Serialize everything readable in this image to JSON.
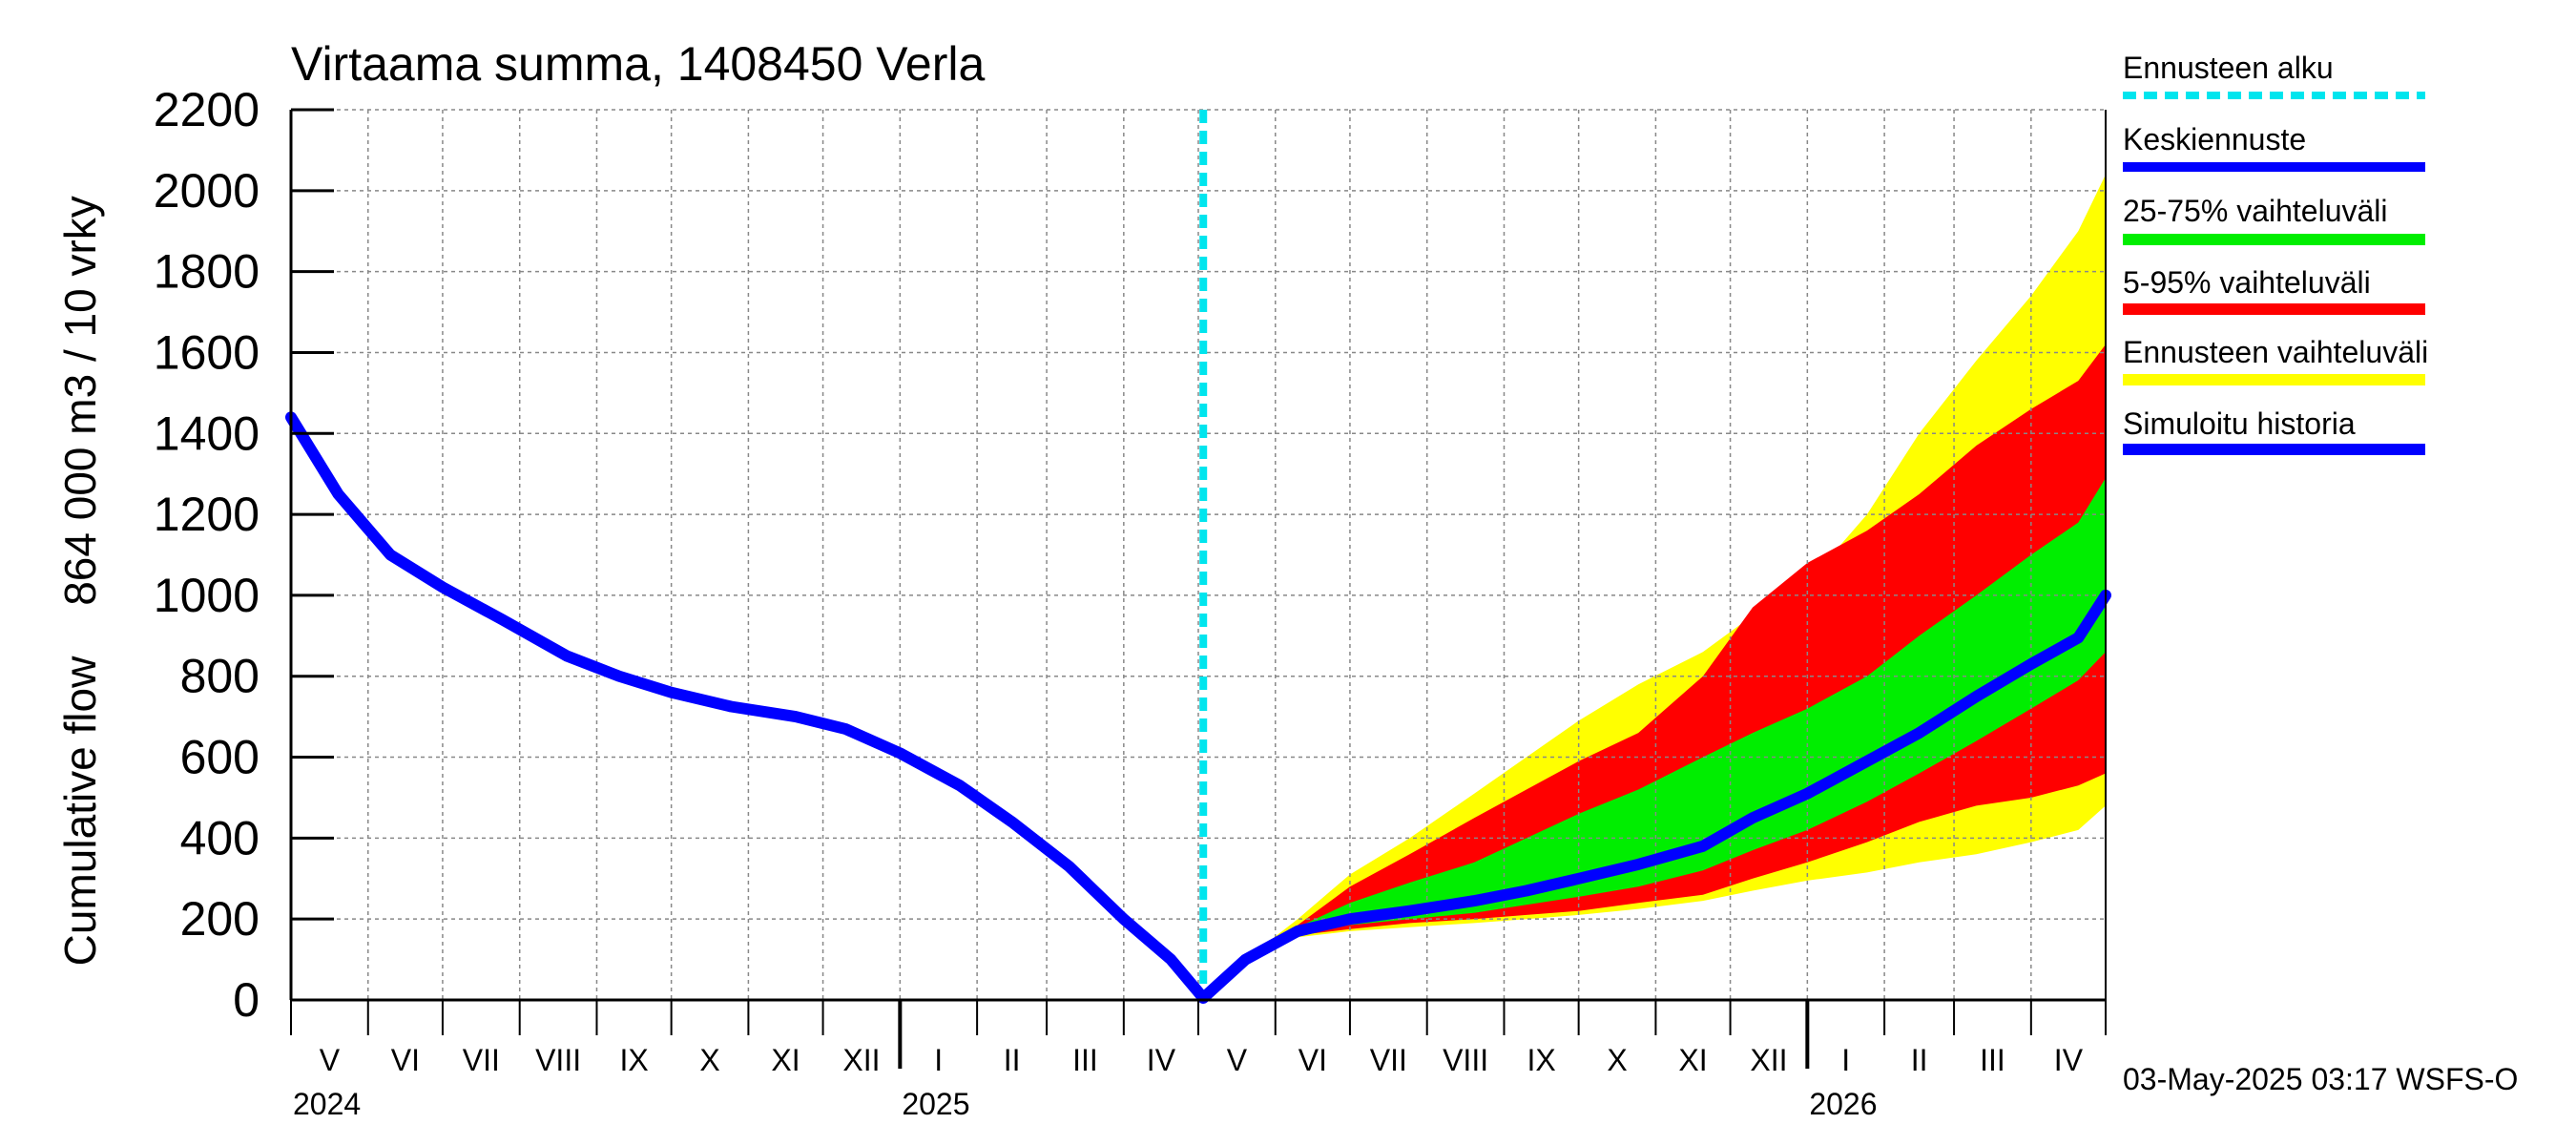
{
  "chart_data": {
    "type": "area",
    "title": "Virtaama summa, 1408450 Verla",
    "ylabel_line1": "864 000 m3 / 10 vrky",
    "ylabel_line2": "Cumulative flow",
    "ylim": [
      0,
      2200
    ],
    "yticks": [
      0,
      200,
      400,
      600,
      800,
      1000,
      1200,
      1400,
      1600,
      1800,
      2000,
      2200
    ],
    "grid": true,
    "legend_position": "right",
    "x_start": "2024-05-01",
    "x_end": "2026-05-01",
    "forecast_start": "2025-05-03",
    "months": [
      "V",
      "VI",
      "VII",
      "VIII",
      "IX",
      "X",
      "XI",
      "XII",
      "I",
      "II",
      "III",
      "IV",
      "V",
      "VI",
      "VII",
      "VIII",
      "IX",
      "X",
      "XI",
      "XII",
      "I",
      "II",
      "III",
      "IV"
    ],
    "years": [
      {
        "label": "2024",
        "date": "2024-05-01"
      },
      {
        "label": "2025",
        "date": "2025-01-01"
      },
      {
        "label": "2026",
        "date": "2026-01-01"
      }
    ],
    "colors": {
      "history": "#0000ff",
      "forecast_start": "#00e5ee",
      "mean": "#0000ff",
      "p25_75": "#00ee00",
      "p5_95": "#ff0000",
      "range": "#ffff00"
    },
    "series": [
      {
        "name": "Simuloitu historia",
        "dates": [
          "2024-05-01",
          "2024-05-20",
          "2024-06-10",
          "2024-07-01",
          "2024-07-25",
          "2024-08-20",
          "2024-09-10",
          "2024-10-01",
          "2024-10-25",
          "2024-11-20",
          "2024-12-10",
          "2025-01-01",
          "2025-01-25",
          "2025-02-15",
          "2025-03-10",
          "2025-04-01",
          "2025-04-20",
          "2025-05-03"
        ],
        "values": [
          1440,
          1250,
          1100,
          1020,
          940,
          850,
          800,
          760,
          725,
          700,
          670,
          610,
          530,
          440,
          330,
          200,
          100,
          5
        ]
      },
      {
        "name": "Keskiennuste",
        "dates": [
          "2025-05-03",
          "2025-05-20",
          "2025-06-10",
          "2025-07-01",
          "2025-07-25",
          "2025-08-20",
          "2025-09-10",
          "2025-10-01",
          "2025-10-25",
          "2025-11-20",
          "2025-12-10",
          "2026-01-01",
          "2026-01-25",
          "2026-02-15",
          "2026-03-10",
          "2026-04-01",
          "2026-04-20",
          "2026-05-01"
        ],
        "values": [
          5,
          100,
          170,
          200,
          220,
          245,
          270,
          300,
          335,
          380,
          450,
          510,
          590,
          660,
          750,
          830,
          895,
          1000
        ]
      },
      {
        "name": "Ennusteen vaihteluväli",
        "dates": [
          "2025-05-03",
          "2025-05-20",
          "2025-06-10",
          "2025-07-01",
          "2025-07-25",
          "2025-08-20",
          "2025-09-10",
          "2025-10-01",
          "2025-10-25",
          "2025-11-20",
          "2025-12-10",
          "2026-01-01",
          "2026-01-25",
          "2026-02-15",
          "2026-03-10",
          "2026-04-01",
          "2026-04-20",
          "2026-05-01"
        ],
        "upper": [
          5,
          100,
          200,
          310,
          400,
          510,
          600,
          690,
          780,
          860,
          950,
          1030,
          1200,
          1400,
          1580,
          1740,
          1900,
          2040
        ],
        "lower": [
          5,
          100,
          155,
          170,
          180,
          190,
          200,
          210,
          225,
          245,
          270,
          295,
          315,
          340,
          360,
          390,
          420,
          480
        ]
      },
      {
        "name": "5-95% vaihteluväli",
        "dates": [
          "2025-05-03",
          "2025-05-20",
          "2025-06-10",
          "2025-07-01",
          "2025-07-25",
          "2025-08-20",
          "2025-09-10",
          "2025-10-01",
          "2025-10-25",
          "2025-11-20",
          "2025-12-10",
          "2026-01-01",
          "2026-01-25",
          "2026-02-15",
          "2026-03-10",
          "2026-04-01",
          "2026-04-20",
          "2026-05-01"
        ],
        "upper": [
          5,
          100,
          185,
          280,
          360,
          450,
          520,
          590,
          660,
          800,
          970,
          1080,
          1160,
          1250,
          1370,
          1460,
          1530,
          1620
        ],
        "lower": [
          5,
          100,
          160,
          175,
          190,
          200,
          210,
          220,
          240,
          260,
          300,
          340,
          390,
          440,
          480,
          500,
          530,
          560
        ]
      },
      {
        "name": "25-75% vaihteluväli",
        "dates": [
          "2025-05-03",
          "2025-05-20",
          "2025-06-10",
          "2025-07-01",
          "2025-07-25",
          "2025-08-20",
          "2025-09-10",
          "2025-10-01",
          "2025-10-25",
          "2025-11-20",
          "2025-12-10",
          "2026-01-01",
          "2026-01-25",
          "2026-02-15",
          "2026-03-10",
          "2026-04-01",
          "2026-04-20",
          "2026-05-01"
        ],
        "upper": [
          5,
          100,
          180,
          240,
          290,
          340,
          400,
          460,
          520,
          600,
          660,
          720,
          800,
          900,
          1000,
          1100,
          1180,
          1290
        ],
        "lower": [
          5,
          100,
          165,
          185,
          200,
          215,
          235,
          255,
          280,
          320,
          370,
          420,
          490,
          560,
          640,
          720,
          790,
          860
        ]
      }
    ]
  },
  "legend": {
    "forecast_start": "Ennusteen alku",
    "mean": "Keskiennuste",
    "p25_75": "25-75% vaihteluväli",
    "p5_95": "5-95% vaihteluväli",
    "range": "Ennusteen vaihteluväli",
    "history": "Simuloitu historia"
  },
  "footer": "03-May-2025 03:17 WSFS-O"
}
